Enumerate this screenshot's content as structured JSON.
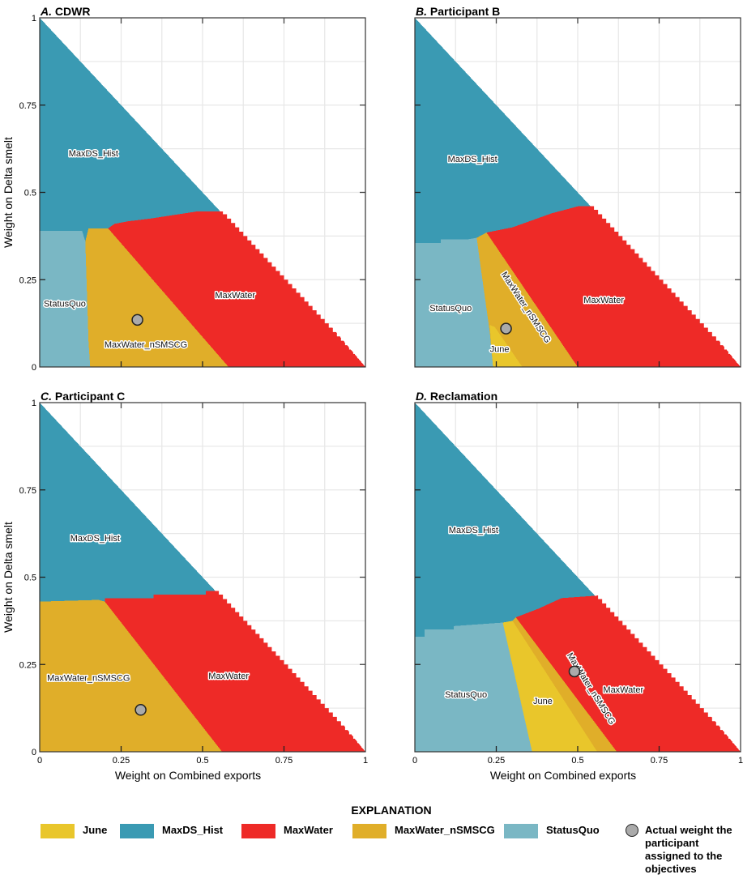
{
  "chart_data": [
    {
      "type": "area",
      "panel_letter": "A.",
      "title": "CDWR",
      "xlabel": "",
      "ylabel": "Weight on Delta smelt",
      "xlim": [
        0,
        1
      ],
      "ylim": [
        0,
        1
      ],
      "xticks": [],
      "yticks": [
        "0",
        "0.25",
        "0.5",
        "0.75",
        "1"
      ],
      "grid": true,
      "regions": [
        {
          "name": "MaxDS_Hist",
          "label": "MaxDS_Hist",
          "polygon": [
            [
              0,
              0
            ],
            [
              1,
              0
            ],
            [
              0,
              1
            ]
          ]
        },
        {
          "name": "StatusQuo",
          "label": "StatusQuo",
          "polygon": [
            [
              0,
              0
            ],
            [
              0.155,
              0
            ],
            [
              0.15,
              0.07
            ],
            [
              0.14,
              0.36
            ],
            [
              0.13,
              0.39
            ],
            [
              0,
              0.39
            ]
          ]
        },
        {
          "name": "MaxWater_nSMSCG",
          "label": "MaxWater_nSMSCG",
          "polygon": [
            [
              0.155,
              0
            ],
            [
              0.58,
              0
            ],
            [
              0.21,
              0.397
            ],
            [
              0.15,
              0.397
            ],
            [
              0.14,
              0.36
            ],
            [
              0.15,
              0.07
            ]
          ]
        },
        {
          "name": "MaxWater",
          "label": "MaxWater",
          "polygon": [
            [
              0.21,
              0.397
            ],
            [
              0.23,
              0.41
            ],
            [
              0.27,
              0.417
            ],
            [
              0.34,
              0.425
            ],
            [
              0.41,
              0.435
            ],
            [
              0.48,
              0.445
            ],
            [
              0.6,
              0.445
            ],
            [
              1,
              0
            ],
            [
              0.58,
              0
            ]
          ]
        }
      ],
      "actual_weight": {
        "x": 0.3,
        "y": 0.135
      }
    },
    {
      "type": "area",
      "panel_letter": "B.",
      "title": "Participant B",
      "xlabel": "",
      "ylabel": "",
      "xlim": [
        0,
        1
      ],
      "ylim": [
        0,
        1
      ],
      "xticks": [],
      "yticks": [],
      "grid": true,
      "regions": [
        {
          "name": "MaxDS_Hist",
          "label": "MaxDS_Hist",
          "polygon": [
            [
              0,
              0
            ],
            [
              1,
              0
            ],
            [
              0,
              1
            ]
          ]
        },
        {
          "name": "StatusQuo",
          "label": "StatusQuo",
          "polygon": [
            [
              0,
              0
            ],
            [
              0.24,
              0
            ],
            [
              0.23,
              0.1
            ],
            [
              0.2,
              0.3
            ],
            [
              0.19,
              0.37
            ],
            [
              0.16,
              0.365
            ],
            [
              0.08,
              0.365
            ],
            [
              0.08,
              0.355
            ],
            [
              0,
              0.355
            ]
          ]
        },
        {
          "name": "MaxWater_nSMSCG",
          "label": "MaxWater_nSMSCG",
          "polygon": [
            [
              0.24,
              0
            ],
            [
              0.23,
              0.1
            ],
            [
              0.2,
              0.3
            ],
            [
              0.19,
              0.37
            ],
            [
              0.22,
              0.385
            ],
            [
              0.5,
              0
            ]
          ]
        },
        {
          "name": "June",
          "label": "June",
          "polygon": [
            [
              0.23,
              0.12
            ],
            [
              0.245,
              0.115
            ],
            [
              0.33,
              0
            ],
            [
              0.24,
              0
            ]
          ]
        },
        {
          "name": "MaxWater",
          "label": "MaxWater",
          "polygon": [
            [
              0.22,
              0.385
            ],
            [
              0.3,
              0.4
            ],
            [
              0.36,
              0.42
            ],
            [
              0.42,
              0.44
            ],
            [
              0.5,
              0.46
            ],
            [
              0.6,
              0.46
            ],
            [
              1,
              0
            ],
            [
              0.5,
              0
            ]
          ]
        }
      ],
      "actual_weight": {
        "x": 0.28,
        "y": 0.11
      }
    },
    {
      "type": "area",
      "panel_letter": "C.",
      "title": "Participant C",
      "xlabel": "Weight on Combined exports",
      "ylabel": "Weight on Delta smelt",
      "xlim": [
        0,
        1
      ],
      "ylim": [
        0,
        1
      ],
      "xticks": [
        "0",
        "0.25",
        "0.5",
        "0.75",
        "1"
      ],
      "yticks": [
        "0",
        "0.25",
        "0.5",
        "0.75",
        "1"
      ],
      "grid": true,
      "regions": [
        {
          "name": "MaxDS_Hist",
          "label": "MaxDS_Hist",
          "polygon": [
            [
              0,
              0
            ],
            [
              1,
              0
            ],
            [
              0,
              1
            ]
          ]
        },
        {
          "name": "MaxWater_nSMSCG",
          "label": "MaxWater_nSMSCG",
          "polygon": [
            [
              0,
              0
            ],
            [
              0.56,
              0
            ],
            [
              0.2,
              0.43
            ],
            [
              0.18,
              0.435
            ],
            [
              0,
              0.43
            ]
          ]
        },
        {
          "name": "MaxWater",
          "label": "MaxWater",
          "polygon": [
            [
              0.2,
              0.43
            ],
            [
              0.56,
              0
            ],
            [
              1,
              0
            ],
            [
              0.6,
              0.46
            ],
            [
              0.51,
              0.46
            ],
            [
              0.51,
              0.45
            ],
            [
              0.35,
              0.45
            ],
            [
              0.35,
              0.44
            ],
            [
              0.2,
              0.44
            ]
          ]
        }
      ],
      "actual_weight": {
        "x": 0.31,
        "y": 0.12
      }
    },
    {
      "type": "area",
      "panel_letter": "D.",
      "title": "Reclamation",
      "xlabel": "Weight on Combined exports",
      "ylabel": "",
      "xlim": [
        0,
        1
      ],
      "ylim": [
        0,
        1
      ],
      "xticks": [
        "0",
        "0.25",
        "0.5",
        "0.75",
        "1"
      ],
      "yticks": [],
      "grid": true,
      "regions": [
        {
          "name": "MaxDS_Hist",
          "label": "MaxDS_Hist",
          "polygon": [
            [
              0,
              0
            ],
            [
              1,
              0
            ],
            [
              0,
              1
            ]
          ]
        },
        {
          "name": "StatusQuo",
          "label": "StatusQuo",
          "polygon": [
            [
              0,
              0
            ],
            [
              0.36,
              0
            ],
            [
              0.27,
              0.37
            ],
            [
              0.12,
              0.36
            ],
            [
              0.12,
              0.35
            ],
            [
              0.03,
              0.35
            ],
            [
              0.03,
              0.33
            ],
            [
              0,
              0.33
            ]
          ]
        },
        {
          "name": "June",
          "label": "June",
          "polygon": [
            [
              0.27,
              0.37
            ],
            [
              0.36,
              0
            ],
            [
              0.56,
              0
            ],
            [
              0.3,
              0.375
            ]
          ]
        },
        {
          "name": "MaxWater_nSMSCG",
          "label": "MaxWater_nSMSCG",
          "polygon": [
            [
              0.3,
              0.375
            ],
            [
              0.56,
              0
            ],
            [
              0.62,
              0
            ],
            [
              0.31,
              0.385
            ]
          ]
        },
        {
          "name": "MaxWater",
          "label": "MaxWater",
          "polygon": [
            [
              0.31,
              0.385
            ],
            [
              0.62,
              0
            ],
            [
              1,
              0
            ],
            [
              0.6,
              0.45
            ],
            [
              0.45,
              0.44
            ],
            [
              0.38,
              0.41
            ]
          ]
        }
      ],
      "actual_weight": {
        "x": 0.49,
        "y": 0.23
      }
    }
  ],
  "colors": {
    "June": "#e9c62b",
    "MaxDS_Hist": "#3a9ab3",
    "MaxWater": "#ee2a27",
    "MaxWater_nSMSCG": "#e0ae29",
    "StatusQuo": "#7ab7c4",
    "actual_weight": "#aaaaaa"
  },
  "legend": {
    "title": "EXPLANATION",
    "items": [
      {
        "name": "June",
        "label": "June"
      },
      {
        "name": "MaxDS_Hist",
        "label": "MaxDS_Hist"
      },
      {
        "name": "MaxWater",
        "label": "MaxWater"
      },
      {
        "name": "MaxWater_nSMSCG",
        "label": "MaxWater_nSMSCG"
      },
      {
        "name": "StatusQuo",
        "label": "StatusQuo"
      }
    ],
    "point_label": "Actual weight the participant assigned to the objectives"
  }
}
